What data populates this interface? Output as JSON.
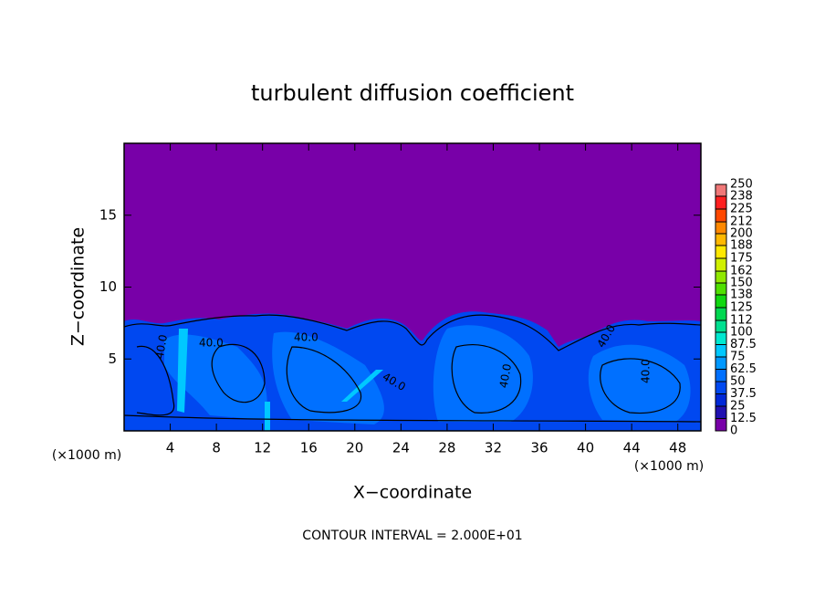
{
  "chart_data": {
    "type": "contour",
    "title": "turbulent diffusion coefficient",
    "xlabel": "X−coordinate",
    "ylabel": "Z−coordinate",
    "xunit": "(×1000 m)",
    "xunit2": "(×1000 m)",
    "footnote": "CONTOUR INTERVAL = 2.000E+01",
    "xlim": [
      0,
      50
    ],
    "ylim": [
      0,
      20
    ],
    "xticks": [
      4,
      8,
      12,
      16,
      20,
      24,
      28,
      32,
      36,
      40,
      44,
      48
    ],
    "yticks": [
      5,
      10,
      15
    ],
    "contour_labels": [
      "40.0",
      "40.0",
      "40.0",
      "40.0",
      "40.0",
      "40.0",
      "40.0"
    ],
    "colorbar": {
      "levels": [
        0,
        12.5,
        25,
        37.5,
        50,
        62.5,
        75,
        87.5,
        100,
        112,
        125,
        138,
        150,
        162,
        175,
        188,
        200,
        212,
        225,
        238,
        250
      ],
      "colors": [
        "#7800a8",
        "#2010b0",
        "#0028d8",
        "#0048f0",
        "#0070ff",
        "#0098ff",
        "#00c8ff",
        "#00e8d0",
        "#00e090",
        "#00d850",
        "#10d810",
        "#50e000",
        "#90e800",
        "#d0f000",
        "#ffe800",
        "#ffb800",
        "#ff8800",
        "#ff4800",
        "#ff2020",
        "#f07878"
      ]
    }
  }
}
